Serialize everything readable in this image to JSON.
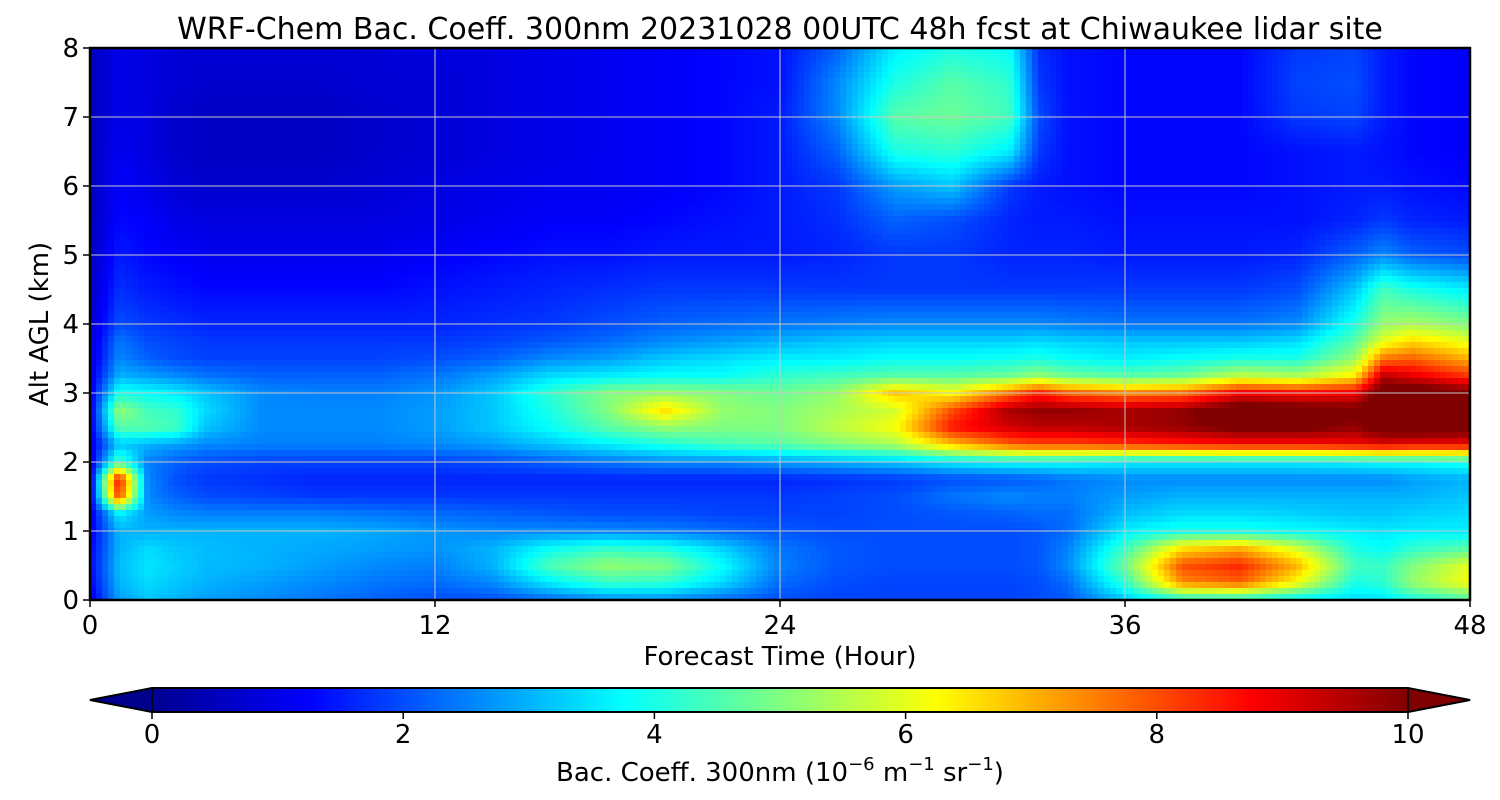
{
  "chart_data": {
    "type": "heatmap",
    "title": "WRF-Chem Bac. Coeff. 300nm  20231028 00UTC 48h fcst at Chiwaukee lidar site",
    "xlabel": "Forecast Time (Hour)",
    "ylabel": "Alt AGL (km)",
    "xlim": [
      0,
      48
    ],
    "ylim": [
      0,
      8
    ],
    "xticks": [
      "0",
      "12",
      "24",
      "36",
      "48"
    ],
    "yticks": [
      "0",
      "1",
      "2",
      "3",
      "4",
      "5",
      "6",
      "7",
      "8"
    ],
    "grid": true,
    "colormap": "jet",
    "colorbar": {
      "label_main": "Bac. Coeff. 300nm  (10",
      "label_exp1": "−6",
      "label_mid": " m",
      "label_exp2": "−1",
      "label_mid2": " sr",
      "label_exp3": "−1",
      "label_end": ")",
      "range": [
        0,
        10
      ],
      "ticks": [
        "0",
        "2",
        "4",
        "6",
        "8",
        "10"
      ],
      "extend": "both",
      "orientation": "horizontal"
    },
    "x": [
      0,
      1,
      2,
      3,
      4,
      6,
      8,
      10,
      12,
      14,
      16,
      18,
      20,
      22,
      24,
      26,
      28,
      30,
      32,
      33,
      34,
      36,
      38,
      40,
      42,
      44,
      45,
      46,
      48
    ],
    "y": [
      0,
      0.25,
      0.5,
      0.75,
      1.0,
      1.25,
      1.5,
      1.75,
      2.0,
      2.25,
      2.5,
      2.75,
      3.0,
      3.25,
      3.5,
      3.75,
      4.0,
      4.5,
      5.0,
      5.5,
      6.0,
      6.5,
      7.0,
      7.5,
      8.0
    ],
    "z": [
      [
        1.0,
        2.8,
        3.2,
        3.0,
        2.8,
        2.6,
        2.4,
        2.2,
        2.0,
        2.0,
        2.3,
        2.6,
        2.6,
        2.3,
        2.0,
        1.9,
        1.9,
        1.9,
        1.9,
        2.0,
        2.1,
        3.2,
        4.0,
        4.0,
        3.6,
        3.4,
        3.5,
        4.0,
        4.5
      ],
      [
        1.2,
        3.0,
        3.4,
        3.2,
        3.0,
        2.8,
        2.6,
        2.4,
        2.3,
        2.6,
        3.6,
        4.3,
        4.2,
        3.4,
        2.3,
        2.0,
        1.9,
        1.9,
        1.9,
        2.0,
        2.3,
        4.2,
        7.4,
        7.8,
        6.2,
        4.0,
        4.2,
        5.2,
        6.2
      ],
      [
        1.3,
        3.1,
        3.5,
        3.3,
        3.1,
        3.0,
        2.8,
        2.6,
        2.5,
        3.0,
        4.5,
        5.2,
        5.0,
        3.8,
        2.5,
        2.1,
        2.0,
        2.0,
        2.0,
        2.1,
        2.6,
        4.8,
        8.0,
        8.4,
        7.0,
        4.4,
        4.3,
        5.0,
        6.0
      ],
      [
        1.2,
        3.0,
        3.4,
        3.2,
        3.1,
        3.0,
        2.9,
        2.8,
        2.7,
        3.0,
        3.8,
        4.2,
        4.0,
        3.3,
        2.4,
        2.1,
        2.0,
        2.0,
        2.0,
        2.1,
        2.5,
        4.3,
        6.5,
        7.0,
        5.8,
        4.0,
        3.8,
        4.2,
        4.6
      ],
      [
        1.1,
        3.0,
        3.0,
        3.0,
        3.0,
        3.0,
        3.0,
        2.9,
        2.7,
        2.6,
        2.6,
        2.6,
        2.5,
        2.3,
        2.1,
        2.0,
        2.0,
        2.0,
        2.0,
        2.1,
        2.3,
        3.6,
        4.0,
        4.0,
        3.8,
        3.6,
        3.5,
        3.6,
        3.6
      ],
      [
        1.0,
        3.6,
        2.8,
        2.6,
        2.5,
        2.5,
        2.5,
        2.4,
        2.3,
        2.2,
        2.1,
        2.0,
        2.0,
        1.9,
        1.9,
        1.9,
        2.0,
        2.1,
        2.2,
        2.3,
        2.3,
        3.1,
        3.4,
        3.4,
        3.3,
        3.2,
        3.2,
        3.3,
        3.4
      ],
      [
        0.9,
        8.2,
        2.6,
        2.2,
        2.0,
        1.9,
        1.8,
        1.8,
        1.8,
        1.8,
        1.8,
        1.8,
        1.8,
        1.8,
        1.8,
        1.9,
        2.0,
        2.4,
        2.6,
        2.5,
        2.5,
        2.8,
        3.0,
        3.0,
        3.0,
        3.0,
        3.0,
        3.0,
        3.2
      ],
      [
        0.9,
        8.8,
        2.6,
        2.0,
        1.8,
        1.7,
        1.6,
        1.6,
        1.6,
        1.6,
        1.6,
        1.6,
        1.6,
        1.6,
        1.6,
        1.7,
        1.8,
        2.0,
        2.1,
        2.2,
        2.4,
        2.6,
        2.6,
        2.6,
        2.6,
        2.6,
        2.6,
        2.8,
        3.0
      ],
      [
        0.9,
        4.5,
        2.5,
        2.2,
        2.0,
        1.9,
        1.9,
        1.9,
        1.9,
        2.0,
        2.2,
        2.4,
        2.6,
        2.6,
        2.8,
        3.0,
        3.2,
        3.6,
        3.8,
        3.8,
        3.8,
        3.6,
        3.6,
        3.6,
        3.6,
        3.7,
        3.8,
        3.8,
        4.0
      ],
      [
        0.9,
        3.2,
        3.0,
        2.8,
        2.6,
        2.5,
        2.5,
        2.5,
        2.6,
        2.8,
        3.2,
        3.6,
        4.0,
        4.4,
        4.6,
        5.0,
        5.4,
        6.8,
        7.8,
        8.0,
        8.0,
        8.2,
        8.4,
        8.6,
        8.6,
        8.8,
        9.0,
        8.8,
        8.8
      ],
      [
        1.0,
        4.6,
        4.6,
        4.4,
        3.2,
        2.6,
        2.6,
        2.6,
        2.8,
        3.2,
        3.8,
        4.6,
        5.2,
        5.0,
        5.0,
        5.6,
        6.2,
        8.6,
        9.2,
        9.4,
        9.4,
        9.6,
        9.8,
        10.2,
        10.2,
        9.8,
        10.4,
        10.6,
        10.4
      ],
      [
        1.0,
        5.2,
        4.4,
        4.2,
        3.4,
        2.6,
        2.6,
        2.6,
        2.8,
        3.2,
        4.0,
        5.0,
        6.6,
        5.2,
        5.0,
        5.4,
        5.8,
        8.0,
        9.6,
        9.8,
        9.8,
        9.6,
        9.8,
        10.6,
        10.4,
        10.2,
        10.4,
        10.6,
        10.6
      ],
      [
        1.0,
        4.0,
        3.8,
        3.6,
        3.2,
        2.6,
        2.5,
        2.5,
        2.7,
        3.2,
        4.2,
        5.0,
        5.2,
        5.0,
        4.8,
        5.2,
        6.8,
        6.2,
        7.6,
        8.4,
        7.8,
        7.4,
        7.6,
        8.8,
        8.6,
        8.8,
        10.6,
        10.6,
        10.2
      ],
      [
        0.9,
        3.0,
        2.8,
        2.6,
        2.4,
        2.2,
        2.2,
        2.2,
        2.4,
        2.8,
        3.4,
        3.6,
        3.8,
        3.8,
        4.2,
        4.4,
        4.6,
        4.6,
        4.8,
        5.2,
        4.8,
        4.6,
        4.8,
        5.6,
        5.4,
        6.4,
        9.4,
        9.0,
        8.2
      ],
      [
        0.8,
        2.6,
        2.2,
        2.0,
        1.9,
        1.9,
        1.9,
        1.9,
        2.0,
        2.2,
        2.6,
        2.8,
        3.2,
        3.4,
        3.6,
        3.6,
        3.8,
        3.8,
        3.9,
        4.0,
        3.8,
        3.6,
        3.8,
        4.0,
        4.0,
        5.2,
        7.6,
        7.8,
        7.0
      ],
      [
        0.8,
        2.4,
        2.0,
        1.9,
        1.8,
        1.8,
        1.8,
        1.8,
        1.8,
        1.9,
        2.1,
        2.3,
        2.6,
        2.8,
        3.0,
        3.2,
        3.3,
        3.3,
        3.3,
        3.4,
        3.3,
        3.2,
        3.2,
        3.2,
        3.4,
        4.6,
        6.0,
        6.6,
        6.0
      ],
      [
        0.7,
        2.0,
        1.8,
        1.7,
        1.6,
        1.6,
        1.6,
        1.6,
        1.6,
        1.7,
        1.8,
        2.0,
        2.2,
        2.3,
        2.4,
        2.5,
        2.6,
        2.6,
        2.6,
        2.6,
        2.5,
        2.4,
        2.4,
        2.4,
        2.6,
        4.0,
        5.2,
        5.4,
        5.0
      ],
      [
        0.6,
        1.7,
        1.5,
        1.4,
        1.3,
        1.3,
        1.3,
        1.3,
        1.4,
        1.5,
        1.6,
        1.7,
        1.8,
        1.8,
        1.8,
        1.8,
        1.8,
        1.8,
        1.8,
        1.8,
        1.8,
        1.8,
        1.8,
        1.8,
        2.0,
        3.2,
        4.4,
        4.0,
        3.6
      ],
      [
        0.5,
        1.5,
        1.3,
        1.2,
        1.1,
        1.1,
        1.1,
        1.1,
        1.2,
        1.3,
        1.4,
        1.4,
        1.5,
        1.5,
        1.5,
        1.6,
        1.8,
        1.8,
        1.6,
        1.6,
        1.6,
        1.5,
        1.5,
        1.5,
        1.6,
        2.2,
        2.6,
        2.2,
        2.0
      ],
      [
        0.5,
        1.3,
        1.2,
        1.0,
        0.9,
        0.9,
        0.9,
        0.9,
        1.0,
        1.1,
        1.2,
        1.2,
        1.3,
        1.4,
        1.5,
        1.7,
        2.2,
        2.0,
        1.6,
        1.5,
        1.5,
        1.4,
        1.4,
        1.4,
        1.4,
        1.6,
        1.8,
        1.6,
        1.5
      ],
      [
        0.5,
        1.2,
        1.0,
        0.8,
        0.7,
        0.7,
        0.7,
        0.8,
        0.9,
        1.0,
        1.1,
        1.1,
        1.2,
        1.3,
        1.5,
        1.8,
        2.8,
        3.2,
        1.8,
        1.5,
        1.4,
        1.3,
        1.3,
        1.3,
        1.4,
        1.5,
        1.5,
        1.4,
        1.3
      ],
      [
        0.5,
        1.1,
        0.9,
        0.7,
        0.6,
        0.6,
        0.6,
        0.7,
        0.8,
        0.9,
        1.0,
        1.1,
        1.2,
        1.3,
        1.5,
        2.2,
        4.0,
        4.2,
        3.6,
        1.8,
        1.4,
        1.3,
        1.3,
        1.3,
        1.4,
        1.5,
        1.4,
        1.3,
        1.2
      ],
      [
        0.5,
        1.0,
        0.9,
        0.7,
        0.6,
        0.6,
        0.6,
        0.7,
        0.8,
        0.9,
        1.0,
        1.1,
        1.2,
        1.3,
        1.5,
        2.6,
        4.6,
        4.8,
        4.4,
        2.0,
        1.4,
        1.3,
        1.3,
        1.3,
        1.8,
        1.9,
        1.5,
        1.3,
        1.2
      ],
      [
        0.5,
        1.0,
        0.9,
        0.8,
        0.7,
        0.7,
        0.7,
        0.8,
        0.8,
        0.9,
        1.0,
        1.1,
        1.2,
        1.3,
        1.4,
        2.6,
        4.0,
        4.6,
        4.2,
        1.8,
        1.4,
        1.3,
        1.3,
        1.3,
        1.9,
        2.0,
        1.5,
        1.3,
        1.2
      ],
      [
        0.5,
        1.0,
        0.9,
        0.8,
        0.8,
        0.8,
        0.8,
        0.8,
        0.9,
        0.9,
        1.0,
        1.1,
        1.2,
        1.3,
        1.4,
        2.2,
        3.6,
        4.0,
        3.8,
        1.7,
        1.4,
        1.3,
        1.3,
        1.3,
        1.8,
        1.9,
        1.5,
        1.3,
        1.2
      ]
    ]
  }
}
